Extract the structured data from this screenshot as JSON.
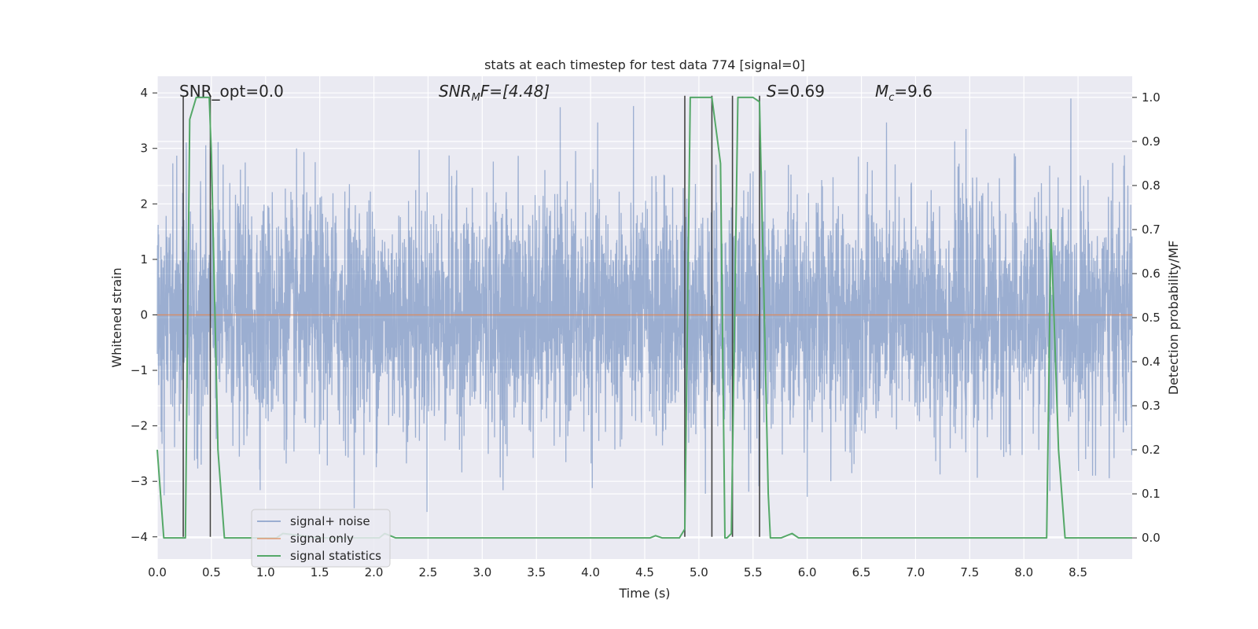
{
  "chart_data": {
    "type": "line",
    "title": "stats at each timestep for test data 774 [signal=0]",
    "xlabel": "Time (s)",
    "ylabel": "Whitened strain",
    "ylabel_right": "Detection probability/MF",
    "xlim": [
      0,
      9.0
    ],
    "ylim": [
      -4.4,
      4.3
    ],
    "ylim_right": [
      -0.048,
      1.048
    ],
    "x_ticks": [
      0.0,
      0.5,
      1.0,
      1.5,
      2.0,
      2.5,
      3.0,
      3.5,
      4.0,
      4.5,
      5.0,
      5.5,
      6.0,
      6.5,
      7.0,
      7.5,
      8.0,
      8.5
    ],
    "x_tick_labels": [
      "0.0",
      "0.5",
      "1.0",
      "1.5",
      "2.0",
      "2.5",
      "3.0",
      "3.5",
      "4.0",
      "4.5",
      "5.0",
      "5.5",
      "6.0",
      "6.5",
      "7.0",
      "7.5",
      "8.0",
      "8.5"
    ],
    "y_ticks": [
      4,
      3,
      2,
      1,
      0,
      -1,
      -2,
      -3,
      -4
    ],
    "y_tick_labels": [
      "4",
      "3",
      "2",
      "1",
      "0",
      "−1",
      "−2",
      "−3",
      "−4"
    ],
    "y_ticks_right": [
      1.0,
      0.9,
      0.8,
      0.7,
      0.6,
      0.5,
      0.4,
      0.3,
      0.2,
      0.1,
      0.0
    ],
    "y_tick_labels_right": [
      "1.0",
      "0.9",
      "0.8",
      "0.7",
      "0.6",
      "0.5",
      "0.4",
      "0.3",
      "0.2",
      "0.1",
      "0.0"
    ],
    "grid": true,
    "legend_position": "bottom-left",
    "series": [
      {
        "name": "signal+ noise",
        "color": "#4c72b0",
        "kind": "noise",
        "approx_envelope": [
          -4.0,
          3.9
        ],
        "sample_rate_hz": 500,
        "seed": 774
      },
      {
        "name": "signal only",
        "color": "#dd8452",
        "x": [
          0,
          9.0
        ],
        "y": [
          0,
          0
        ]
      },
      {
        "name": "signal statistics",
        "color": "#55a868",
        "axis": "right",
        "x": [
          0.0,
          0.06,
          0.12,
          0.24,
          0.26,
          0.3,
          0.36,
          0.48,
          0.5,
          0.56,
          0.62,
          1.1,
          1.16,
          1.5,
          2.05,
          2.1,
          2.2,
          4.5,
          4.55,
          4.6,
          4.66,
          4.82,
          4.87,
          4.92,
          5.12,
          5.2,
          5.24,
          5.26,
          5.3,
          5.36,
          5.5,
          5.56,
          5.6,
          5.64,
          5.66,
          5.7,
          5.76,
          5.86,
          5.92,
          6.0,
          8.18,
          8.21,
          8.25,
          8.32,
          8.38,
          9.0
        ],
        "y": [
          0.2,
          0.0,
          0.0,
          0.0,
          0.0,
          0.95,
          1.0,
          1.0,
          0.87,
          0.2,
          0.0,
          0.0,
          0.01,
          0.0,
          0.0,
          0.01,
          0.0,
          0.0,
          0.0,
          0.005,
          0.0,
          0.0,
          0.02,
          1.0,
          1.0,
          0.85,
          0.0,
          0.0,
          0.01,
          1.0,
          1.0,
          0.99,
          0.55,
          0.1,
          0.0,
          0.0,
          0.0,
          0.01,
          0.0,
          0.0,
          0.0,
          0.0,
          0.7,
          0.2,
          0.0,
          0.0
        ]
      }
    ],
    "vertical_lines": {
      "color": "#444444",
      "x": [
        0.24,
        0.49,
        4.87,
        5.12,
        5.31,
        5.56
      ]
    },
    "annotations": [
      {
        "id": "snr-opt",
        "text": "SNR_opt=0.0",
        "x": 0.18,
        "y": 4.0
      },
      {
        "id": "snr-mf",
        "text": "SNR_MF=[4.48]",
        "x": 2.6,
        "y": 4.0
      },
      {
        "id": "s-value",
        "text": "S=0.69",
        "x": 5.6,
        "y": 4.0
      },
      {
        "id": "mc-value",
        "text": "M_c=9.6",
        "x": 6.6,
        "y": 4.0
      }
    ]
  },
  "labels": {
    "title": "stats at each timestep for test data 774 [signal=0]",
    "xlabel": "Time (s)",
    "ylabel": "Whitened strain",
    "ylabel_right": "Detection probability/MF",
    "annotation_snr_opt": "SNR_opt=0.0",
    "annotation_snr_mf_main": "SNR",
    "annotation_snr_mf_sub": "M",
    "annotation_snr_mf_rest": "F=[4.48]",
    "annotation_s_main": "S",
    "annotation_s_rest": "=0.69",
    "annotation_mc_main": "M",
    "annotation_mc_sub": "c",
    "annotation_mc_rest": "=9.6",
    "legend_noise": "signal+ noise",
    "legend_signal": "signal only",
    "legend_stats": "signal statistics"
  },
  "colors": {
    "plot_bg": "#eaeaf2",
    "grid": "#ffffff",
    "noise": "#4c72b0",
    "signal": "#dd8452",
    "stats": "#55a868",
    "vline": "#444444"
  }
}
